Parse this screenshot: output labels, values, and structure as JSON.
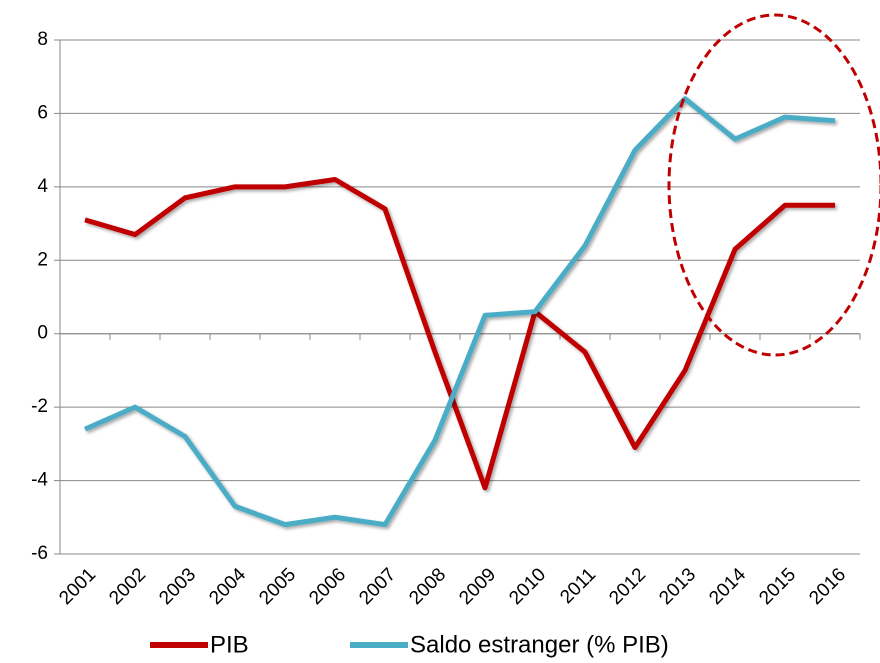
{
  "chart_data": {
    "type": "line",
    "categories": [
      "2001",
      "2002",
      "2003",
      "2004",
      "2005",
      "2006",
      "2007",
      "2008",
      "2009",
      "2010",
      "2011",
      "2012",
      "2013",
      "2014",
      "2015",
      "2016"
    ],
    "series": [
      {
        "name": "PIB",
        "color": "#c00000",
        "values": [
          3.1,
          2.7,
          3.7,
          4.0,
          4.0,
          4.2,
          3.4,
          -0.5,
          -4.2,
          0.6,
          -0.5,
          -3.1,
          -1.0,
          2.3,
          3.5,
          3.5
        ]
      },
      {
        "name": "Saldo estranger (% PIB)",
        "color": "#4bacc6",
        "values": [
          -2.6,
          -2.0,
          -2.8,
          -4.7,
          -5.2,
          -5.0,
          -5.2,
          -2.9,
          0.5,
          0.6,
          2.4,
          5.0,
          6.4,
          5.3,
          5.9,
          5.8
        ]
      }
    ],
    "ylim": [
      -6,
      8
    ],
    "yticks": [
      -6,
      -4,
      -2,
      0,
      2,
      4,
      6,
      8
    ],
    "grid": true,
    "legend": "bottom"
  }
}
